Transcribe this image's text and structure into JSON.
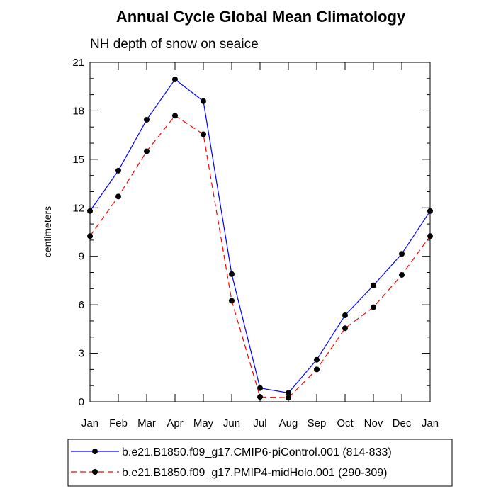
{
  "chart_data": {
    "type": "line",
    "title": "Annual Cycle Global Mean Climatology",
    "subtitle": "NH depth of snow on seaice",
    "xlabel": "",
    "ylabel": "centimeters",
    "ylim": [
      0,
      21
    ],
    "yticks": [
      0,
      3,
      6,
      9,
      12,
      15,
      18,
      21
    ],
    "categories": [
      "Jan",
      "Feb",
      "Mar",
      "Apr",
      "May",
      "Jun",
      "Jul",
      "Aug",
      "Sep",
      "Oct",
      "Nov",
      "Dec",
      "Jan"
    ],
    "series": [
      {
        "name": "b.e21.B1850.f09_g17.CMIP6-piControl.001 (814-833)",
        "color": "#0000ff",
        "dash": "solid",
        "values": [
          11.8,
          14.3,
          17.45,
          19.95,
          18.6,
          7.9,
          0.85,
          0.55,
          2.6,
          5.35,
          7.2,
          9.15,
          11.8
        ]
      },
      {
        "name": "b.e21.B1850.f09_g17.PMIP4-midHolo.001 (290-309)",
        "color": "#ff0000",
        "dash": "dashed",
        "values": [
          10.25,
          12.7,
          15.5,
          17.7,
          16.55,
          6.25,
          0.3,
          0.25,
          2.0,
          4.55,
          5.85,
          7.85,
          10.25
        ]
      }
    ]
  }
}
